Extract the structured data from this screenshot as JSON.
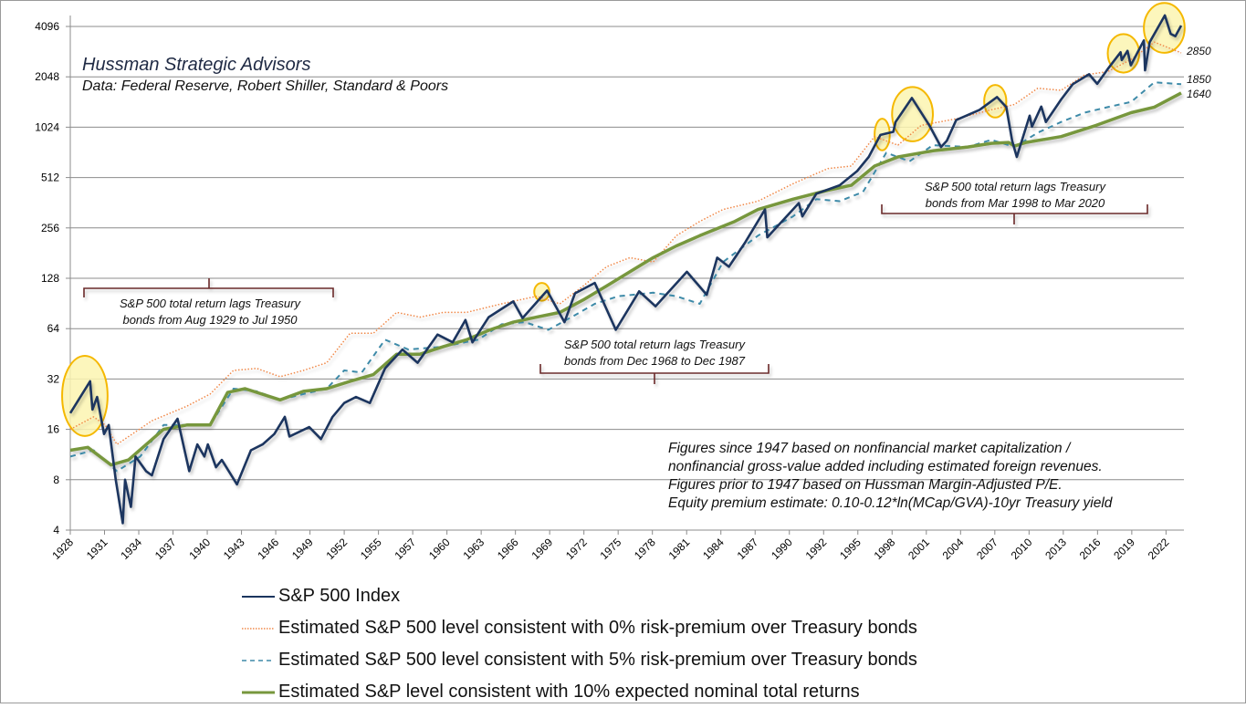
{
  "header": {
    "title": "Hussman Strategic Advisors",
    "subtitle": "Data: Federal Reserve, Robert Shiller, Standard & Poors"
  },
  "note_lines": [
    "Figures since 1947 based on nonfinancial market capitalization /",
    "nonfinancial gross-value added including estimated foreign revenues.",
    "Figures prior to 1947 based on Hussman Margin-Adjusted P/E.",
    "Equity premium estimate: 0.10-0.12*ln(MCap/GVA)-10yr Treasury yield"
  ],
  "annotations": [
    {
      "line1": "S&P 500 total return lags Treasury",
      "line2": "bonds from Aug 1929 to Jul 1950"
    },
    {
      "line1": "S&P 500 total return lags Treasury",
      "line2": "bonds from Dec 1968 to Dec 1987"
    },
    {
      "line1": "S&P 500 total return lags Treasury",
      "line2": "bonds from Mar 1998 to Mar 2020"
    }
  ],
  "end_labels": {
    "zero_premium": "2850",
    "five_premium": "1850",
    "ten_return": "1640"
  },
  "colors": {
    "sp500": "#1b355e",
    "zero_premium": "#f0894a",
    "five_premium": "#3e8aa8",
    "ten_return": "#77973d",
    "highlight_stroke": "#f5b800",
    "highlight_fill": "#fbf5b0"
  },
  "chart_data": {
    "type": "line",
    "y_scale": "log2",
    "ylim": [
      4,
      4096
    ],
    "xlim": [
      1928,
      2023.4
    ],
    "y_ticks": [
      "4",
      "8",
      "16",
      "32",
      "64",
      "128",
      "256",
      "512",
      "1024",
      "2048",
      "4096"
    ],
    "x_ticks": [
      "1928",
      "1931",
      "1934",
      "1937",
      "1940",
      "1943",
      "1946",
      "1949",
      "1952",
      "1955",
      "1957",
      "1960",
      "1963",
      "1966",
      "1969",
      "1972",
      "1975",
      "1978",
      "1981",
      "1984",
      "1987",
      "1990",
      "1992",
      "1995",
      "1998",
      "2001",
      "2004",
      "2007",
      "2010",
      "2013",
      "2016",
      "2019",
      "2022"
    ],
    "grid": true,
    "legend": "bottom",
    "series": [
      {
        "key": "sp500",
        "name": "S&P 500 Index",
        "style": "solid",
        "x": [
          1928,
          1929.7,
          1929.9,
          1930.3,
          1930.9,
          1931.3,
          1931.9,
          1932.5,
          1932.7,
          1933.2,
          1933.6,
          1934.5,
          1935,
          1936,
          1937.2,
          1938.2,
          1938.9,
          1939.5,
          1939.8,
          1940.5,
          1941,
          1942.3,
          1943.5,
          1944.5,
          1945.5,
          1946.4,
          1946.8,
          1948.5,
          1949.5,
          1950.5,
          1951.5,
          1952.5,
          1953.7,
          1955,
          1956.5,
          1957.8,
          1959.5,
          1960.8,
          1961.9,
          1962.5,
          1963.9,
          1966,
          1966.8,
          1968.9,
          1970.4,
          1971.3,
          1973,
          1974.8,
          1976.8,
          1978.2,
          1980.9,
          1982.6,
          1983.5,
          1984.5,
          1985.9,
          1987.6,
          1987.8,
          1990.5,
          1990.8,
          1992,
          1994,
          1995.5,
          1996.5,
          1997.5,
          1998.6,
          1998.8,
          2000.2,
          2001.7,
          2002.7,
          2003.2,
          2004,
          2006,
          2007.5,
          2008.3,
          2008.8,
          2009.2,
          2010.3,
          2010.5,
          2011.3,
          2011.7,
          2013,
          2014,
          2015.4,
          2016.1,
          2017,
          2018.1,
          2018.2,
          2018.7,
          2018.98,
          2020.1,
          2020.2,
          2020.6,
          2021.9,
          2022.4,
          2022.8,
          2023.3
        ],
        "y": [
          20,
          31,
          21,
          25,
          15,
          17,
          8,
          4.4,
          8,
          5.5,
          11,
          9,
          8.5,
          14,
          18.5,
          9,
          13,
          11,
          13,
          9.5,
          10.5,
          7.5,
          12,
          13,
          15,
          19,
          14.5,
          16.5,
          14,
          19,
          23,
          25,
          23,
          37,
          48,
          40,
          59,
          53,
          72,
          53,
          75,
          93,
          74,
          108,
          70,
          104,
          120,
          63,
          107,
          87,
          140,
          102,
          170,
          150,
          210,
          330,
          225,
          360,
          300,
          410,
          460,
          560,
          680,
          920,
          960,
          1100,
          1530,
          1050,
          780,
          850,
          1130,
          1300,
          1550,
          1350,
          850,
          680,
          1200,
          1030,
          1360,
          1100,
          1500,
          1850,
          2120,
          1860,
          2280,
          2870,
          2580,
          2930,
          2400,
          3380,
          2240,
          3300,
          4770,
          3700,
          3580,
          4150
        ]
      },
      {
        "key": "zero_premium",
        "name": "Estimated S&P 500 level consistent with 0% risk-premium over Treasury bonds",
        "style": "dotted",
        "x": [
          1928,
          1930,
          1931,
          1932,
          1935,
          1938,
          1940,
          1942,
          1944,
          1946,
          1948,
          1950,
          1952,
          1954,
          1956,
          1958,
          1960,
          1962,
          1965,
          1968,
          1970,
          1972,
          1974,
          1976,
          1978,
          1980,
          1982,
          1984,
          1987,
          1990,
          1993,
          1995,
          1997,
          1999,
          2001,
          2004,
          2007,
          2009,
          2011,
          2013,
          2015,
          2017,
          2019,
          2021,
          2023.3
        ],
        "y": [
          16,
          19,
          17,
          13,
          18,
          22,
          26,
          36,
          37,
          33,
          36,
          40,
          60,
          60,
          80,
          75,
          80,
          80,
          90,
          100,
          90,
          115,
          150,
          170,
          160,
          230,
          280,
          330,
          370,
          470,
          580,
          600,
          900,
          800,
          1050,
          1150,
          1300,
          1400,
          1750,
          1700,
          2100,
          2200,
          2600,
          3300,
          2850
        ]
      },
      {
        "key": "five_premium",
        "name": "Estimated S&P 500 level consistent with 5% risk-premium over Treasury bonds",
        "style": "dashed",
        "x": [
          1928,
          1930,
          1932,
          1934,
          1936,
          1938,
          1940,
          1942,
          1944,
          1946,
          1948,
          1950,
          1951.5,
          1953,
          1955,
          1957,
          1960,
          1963,
          1965,
          1967,
          1969,
          1971,
          1973,
          1975,
          1978,
          1980,
          1982,
          1984,
          1987,
          1990,
          1992,
          1994,
          1996,
          1998,
          2000,
          2002,
          2005,
          2007,
          2009,
          2011,
          2013,
          2015,
          2017,
          2019,
          2021,
          2023.3
        ],
        "y": [
          11,
          12,
          9,
          11,
          17,
          17,
          17,
          28,
          27,
          24,
          26,
          28,
          36,
          35,
          55,
          48,
          50,
          55,
          68,
          70,
          63,
          75,
          90,
          100,
          105,
          100,
          90,
          160,
          230,
          300,
          380,
          370,
          420,
          720,
          640,
          800,
          780,
          860,
          780,
          950,
          1100,
          1250,
          1350,
          1450,
          1900,
          1850
        ]
      },
      {
        "key": "ten_return",
        "name": "Estimated S&P level consistent with 10% expected nominal total returns",
        "style": "solid-thick",
        "x": [
          1928,
          1929.5,
          1931.5,
          1933,
          1936,
          1938,
          1940,
          1941.5,
          1943,
          1946,
          1948,
          1950,
          1952,
          1954,
          1956,
          1958,
          1960,
          1962,
          1964,
          1966,
          1968,
          1970,
          1972,
          1974,
          1976,
          1978,
          1980,
          1982,
          1985,
          1987,
          1990,
          1993,
          1995,
          1997,
          1999,
          2002,
          2005,
          2007,
          2008.5,
          2009,
          2010,
          2013,
          2016,
          2019,
          2021,
          2023.3
        ],
        "y": [
          12,
          12.5,
          9.8,
          10.5,
          16,
          17,
          17,
          26.6,
          28,
          24,
          27,
          28,
          31,
          34,
          45,
          45,
          50,
          55,
          63,
          70,
          75,
          80,
          95,
          115,
          140,
          170,
          200,
          230,
          280,
          330,
          380,
          430,
          460,
          600,
          680,
          740,
          780,
          820,
          830,
          790,
          830,
          900,
          1050,
          1250,
          1350,
          1640
        ]
      }
    ],
    "highlights": [
      {
        "x": [
          1927.3,
          1931.2
        ],
        "y": [
          14.6,
          44
        ]
      },
      {
        "x": [
          1967.8,
          1969.1
        ],
        "y": [
          94,
          120
        ]
      },
      {
        "x": [
          1997.0,
          1998.3
        ],
        "y": [
          745,
          1150
        ]
      },
      {
        "x": [
          1998.5,
          2002.0
        ],
        "y": [
          843,
          1780
        ]
      },
      {
        "x": [
          2006.4,
          2008.3
        ],
        "y": [
          1170,
          1830
        ]
      },
      {
        "x": [
          2017.0,
          2019.7
        ],
        "y": [
          2170,
          3690
        ]
      },
      {
        "x": [
          2020.1,
          2023.6
        ],
        "y": [
          2850,
          5660
        ]
      }
    ]
  }
}
